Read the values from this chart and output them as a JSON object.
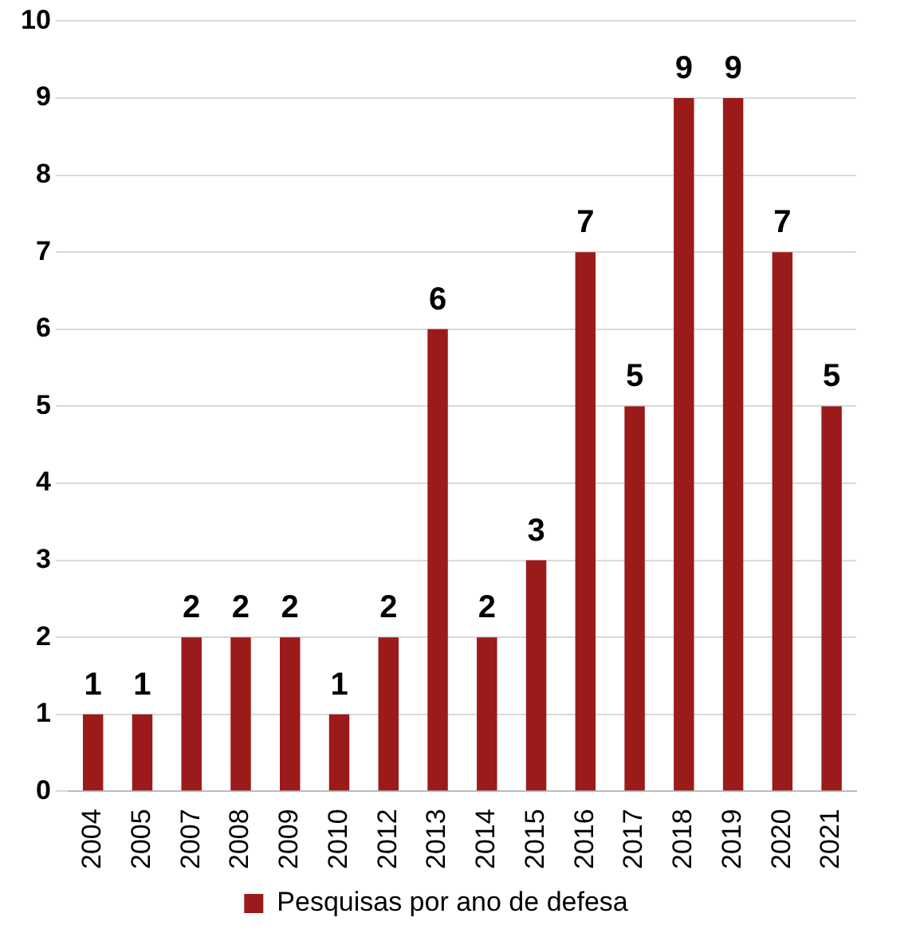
{
  "chart_data": {
    "type": "bar",
    "categories": [
      "2004",
      "2005",
      "2007",
      "2008",
      "2009",
      "2010",
      "2012",
      "2013",
      "2014",
      "2015",
      "2016",
      "2017",
      "2018",
      "2019",
      "2020",
      "2021"
    ],
    "series": [
      {
        "name": "Pesquisas por ano de defesa",
        "color": "#9b1b1b",
        "values": [
          1,
          1,
          2,
          2,
          2,
          1,
          2,
          6,
          2,
          3,
          7,
          5,
          9,
          9,
          7,
          5
        ]
      }
    ],
    "ylim": [
      0,
      10
    ],
    "yticks": [
      0,
      1,
      2,
      3,
      4,
      5,
      6,
      7,
      8,
      9,
      10
    ],
    "grid": "y",
    "legend": "bottom",
    "data_labels": true
  }
}
